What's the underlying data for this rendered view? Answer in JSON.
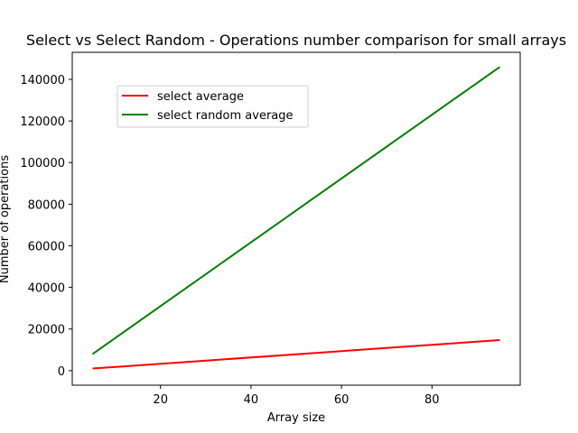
{
  "chart_data": {
    "type": "line",
    "title": "Select vs Select Random - Operations number comparison for small arrays",
    "xlabel": "Array size",
    "ylabel": "Number of operations",
    "xlim": [
      0.5,
      99.5
    ],
    "ylim": [
      -7000,
      153000
    ],
    "x_ticks": [
      20,
      40,
      60,
      80
    ],
    "x_tick_labels": [
      "20",
      "40",
      "60",
      "80"
    ],
    "y_ticks": [
      0,
      20000,
      40000,
      60000,
      80000,
      100000,
      120000,
      140000
    ],
    "y_tick_labels": [
      "0",
      "20000",
      "40000",
      "60000",
      "80000",
      "100000",
      "120000",
      "140000"
    ],
    "grid": false,
    "legend_position": "upper-left",
    "series": [
      {
        "name": "select average",
        "color": "#ff0000",
        "x": [
          5,
          95
        ],
        "y": [
          1000,
          14700
        ]
      },
      {
        "name": "select random average",
        "color": "#008000",
        "x": [
          5,
          95
        ],
        "y": [
          8000,
          146000
        ]
      }
    ]
  }
}
